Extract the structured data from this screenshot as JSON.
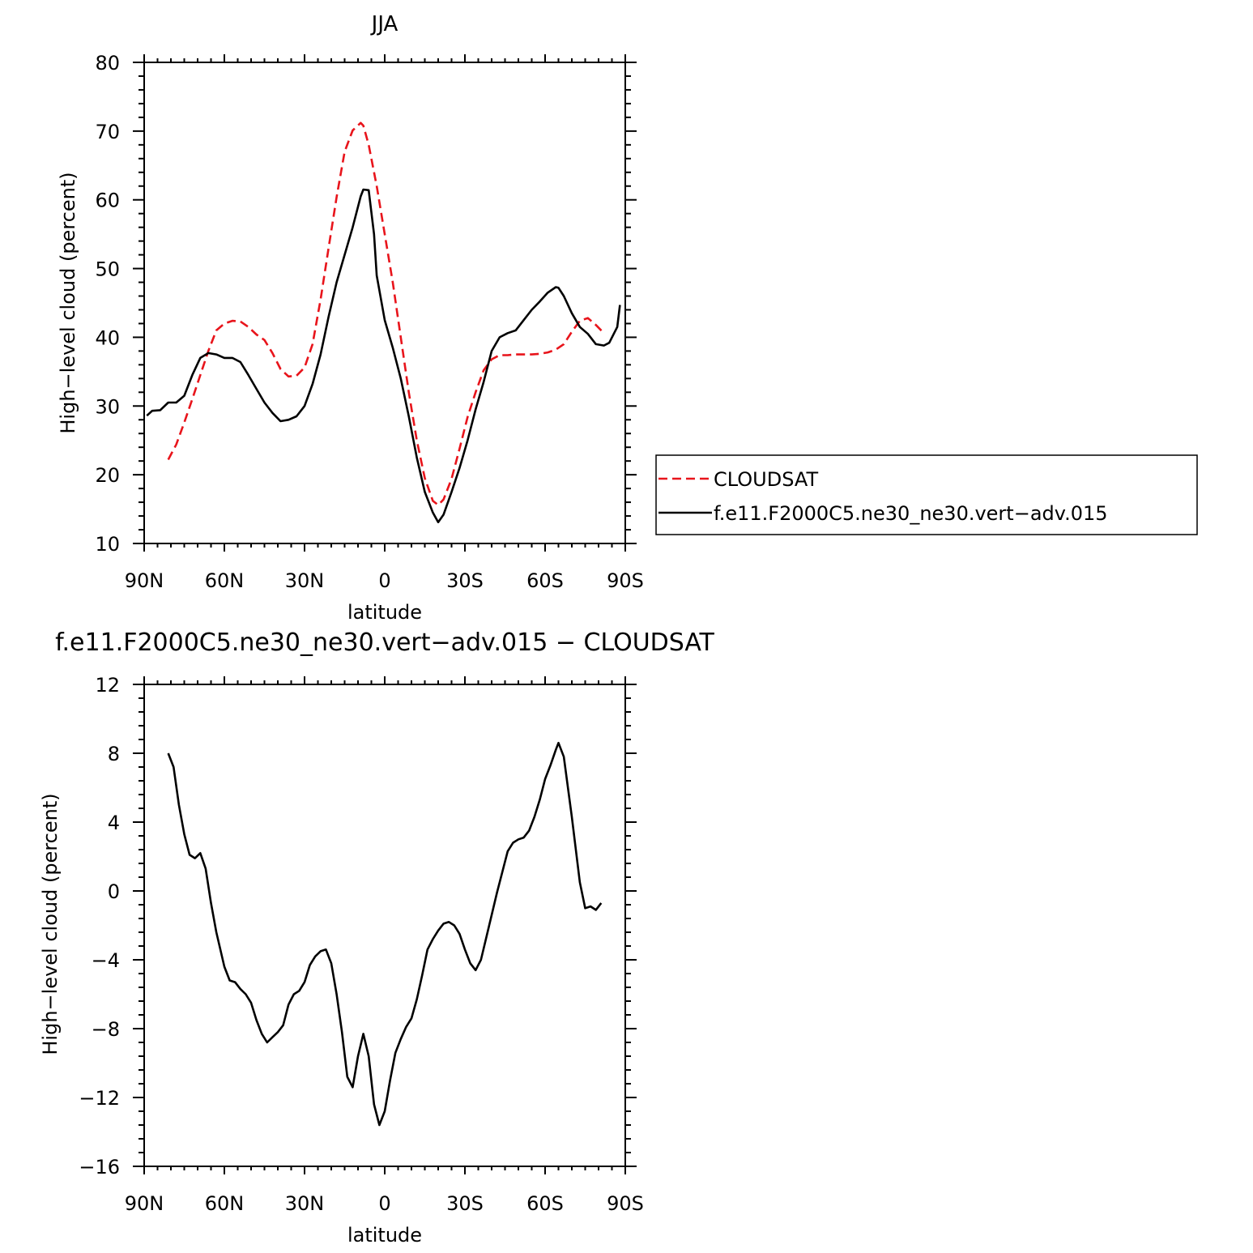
{
  "colors": {
    "cloudsat": "#e8141b",
    "model": "#000000",
    "axis": "#000000"
  },
  "chart_data": [
    {
      "type": "line",
      "title": "JJA",
      "xlabel": "latitude",
      "ylabel": "High−level cloud (percent)",
      "xlim": [
        90,
        -90
      ],
      "ylim": [
        10,
        80
      ],
      "xticks": [
        90,
        60,
        30,
        0,
        -30,
        -60,
        -90
      ],
      "xtick_labels": [
        "90N",
        "60N",
        "30N",
        "0",
        "30S",
        "60S",
        "90S"
      ],
      "yticks": [
        10,
        20,
        30,
        40,
        50,
        60,
        70,
        80
      ],
      "ytick_labels": [
        "10",
        "20",
        "30",
        "40",
        "50",
        "60",
        "70",
        "80"
      ],
      "legend": {
        "placement": "right",
        "entries": [
          "CLOUDSAT",
          "f.e11.F2000C5.ne30_ne30.vert−adv.015"
        ]
      },
      "series": [
        {
          "name": "CLOUDSAT",
          "style": "dashed",
          "color": "#e8141b",
          "x": [
            81,
            78,
            75,
            72,
            69,
            66,
            63,
            60,
            57,
            54,
            51,
            48,
            45,
            42,
            39,
            36,
            33,
            30,
            27,
            24,
            21,
            18,
            15,
            12,
            9,
            8,
            6,
            3,
            0,
            -3,
            -6,
            -9,
            -12,
            -15,
            -18,
            -20,
            -22,
            -25,
            -28,
            -31,
            -34,
            -37,
            -40,
            -43,
            -46,
            -49,
            -52,
            -55,
            -58,
            -61,
            -64,
            -67,
            -70,
            -73,
            -76,
            -79,
            -82
          ],
          "y": [
            22.2,
            24.4,
            27.6,
            31.0,
            34.5,
            38.0,
            41.0,
            42.0,
            42.4,
            42.3,
            41.5,
            40.4,
            39.6,
            37.7,
            35.4,
            34.3,
            34.4,
            35.6,
            39.0,
            45.5,
            53.0,
            60.4,
            67.0,
            70.1,
            71.2,
            70.8,
            68.0,
            62.0,
            55.0,
            48.0,
            40.0,
            32.0,
            25.0,
            19.5,
            16.2,
            15.6,
            16.4,
            19.4,
            23.8,
            28.4,
            32.0,
            35.2,
            36.8,
            37.4,
            37.4,
            37.5,
            37.5,
            37.5,
            37.6,
            37.8,
            38.2,
            39.0,
            40.8,
            42.4,
            42.8,
            41.8,
            40.6
          ]
        },
        {
          "name": "f.e11.F2000C5.ne30_ne30.vert−adv.015",
          "style": "solid",
          "color": "#000000",
          "x": [
            89,
            87,
            84,
            81,
            78,
            75,
            72,
            69,
            66,
            63,
            60,
            57,
            54,
            51,
            48,
            45,
            42,
            39,
            36,
            33,
            30,
            27,
            24,
            21,
            18,
            15,
            12,
            9,
            8,
            6,
            4,
            3,
            0,
            -3,
            -6,
            -9,
            -12,
            -15,
            -18,
            -20,
            -22,
            -25,
            -28,
            -31,
            -34,
            -37,
            -40,
            -43,
            -46,
            -49,
            -52,
            -55,
            -58,
            -61,
            -64,
            -65,
            -67,
            -70,
            -73,
            -76,
            -79,
            -82,
            -84,
            -87,
            -88
          ],
          "y": [
            28.6,
            29.3,
            29.4,
            30.5,
            30.5,
            31.5,
            34.5,
            37.0,
            37.7,
            37.5,
            37.0,
            37.0,
            36.4,
            34.5,
            32.5,
            30.5,
            29.0,
            27.8,
            28.0,
            28.5,
            30.0,
            33.2,
            37.5,
            43.0,
            48.0,
            52.0,
            56.0,
            60.5,
            61.5,
            61.4,
            55.0,
            49.0,
            42.5,
            38.5,
            34.0,
            28.5,
            22.5,
            17.5,
            14.5,
            13.1,
            14.2,
            17.5,
            21.0,
            25.0,
            29.5,
            33.5,
            38.0,
            40.0,
            40.6,
            41.0,
            42.5,
            44.0,
            45.2,
            46.5,
            47.3,
            47.2,
            46.0,
            43.5,
            41.5,
            40.5,
            39.0,
            38.8,
            39.2,
            41.5,
            44.7
          ]
        }
      ]
    },
    {
      "type": "line",
      "title": "f.e11.F2000C5.ne30_ne30.vert−adv.015 − CLOUDSAT",
      "xlabel": "latitude",
      "ylabel": "High−level cloud (percent)",
      "xlim": [
        90,
        -90
      ],
      "ylim": [
        -16,
        12
      ],
      "xticks": [
        90,
        60,
        30,
        0,
        -30,
        -60,
        -90
      ],
      "xtick_labels": [
        "90N",
        "60N",
        "30N",
        "0",
        "30S",
        "60S",
        "90S"
      ],
      "yticks": [
        -16,
        -12,
        -8,
        -4,
        0,
        4,
        8,
        12
      ],
      "ytick_labels": [
        "−16",
        "−12",
        "−8",
        "−4",
        "0",
        "4",
        "8",
        "12"
      ],
      "series": [
        {
          "style": "solid",
          "color": "#000000",
          "x": [
            81,
            79,
            77,
            75,
            73,
            71,
            69,
            67,
            65,
            63,
            60,
            58,
            56,
            54,
            52,
            50,
            48,
            46,
            44,
            42,
            40,
            38,
            36,
            34,
            32,
            30,
            28,
            26,
            24,
            22,
            20,
            18,
            16,
            14,
            12,
            10,
            8,
            6,
            4,
            2,
            0,
            -2,
            -4,
            -6,
            -8,
            -10,
            -12,
            -14,
            -16,
            -18,
            -20,
            -22,
            -24,
            -26,
            -28,
            -30,
            -32,
            -34,
            -36,
            -38,
            -40,
            -42,
            -44,
            -46,
            -48,
            -50,
            -52,
            -54,
            -56,
            -58,
            -60,
            -62,
            -64,
            -65,
            -67,
            -70,
            -73,
            -75,
            -77,
            -79,
            -81
          ],
          "y": [
            8.0,
            7.2,
            5.0,
            3.3,
            2.1,
            1.9,
            2.2,
            1.3,
            -0.7,
            -2.4,
            -4.4,
            -5.2,
            -5.3,
            -5.7,
            -6.0,
            -6.5,
            -7.5,
            -8.3,
            -8.8,
            -8.5,
            -8.2,
            -7.8,
            -6.6,
            -6.0,
            -5.8,
            -5.3,
            -4.3,
            -3.8,
            -3.5,
            -3.4,
            -4.2,
            -6.0,
            -8.2,
            -10.8,
            -11.4,
            -9.6,
            -8.3,
            -9.6,
            -12.4,
            -13.6,
            -12.8,
            -11.0,
            -9.4,
            -8.6,
            -7.9,
            -7.4,
            -6.3,
            -4.9,
            -3.4,
            -2.8,
            -2.3,
            -1.9,
            -1.8,
            -2.0,
            -2.5,
            -3.4,
            -4.2,
            -4.6,
            -4.0,
            -2.7,
            -1.4,
            -0.1,
            1.1,
            2.3,
            2.8,
            3.0,
            3.1,
            3.5,
            4.3,
            5.3,
            6.5,
            7.3,
            8.2,
            8.6,
            7.8,
            4.3,
            0.5,
            -1.0,
            -0.9,
            -1.1,
            -0.7
          ]
        }
      ]
    }
  ]
}
